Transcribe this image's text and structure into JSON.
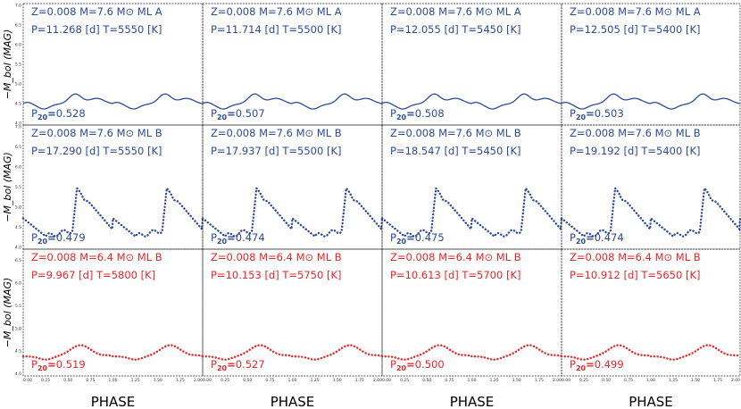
{
  "chart_data": {
    "type": "line",
    "rows": [
      {
        "label": "ML A",
        "color": "#2b4a9b",
        "style": "solid",
        "ylabel": "−M_bol (MAG)",
        "yticks": [
          4.0,
          4.5,
          5.0,
          5.5,
          6.0,
          6.5,
          7.0
        ],
        "ylim": [
          3.95,
          7.05
        ]
      },
      {
        "label": "ML B",
        "color": "#2b4a9b",
        "style": "dotted",
        "ylabel": "−M_bol (MAG)",
        "yticks": [
          4.0,
          4.5,
          5.0,
          5.5,
          6.0,
          6.5,
          7.0
        ],
        "ylim": [
          3.95,
          7.05
        ]
      },
      {
        "label": "ML B",
        "color": "#e8262a",
        "style": "dotted",
        "ylabel": "−M_bol (MAG)",
        "yticks": [
          4.0,
          4.5,
          5.0,
          5.5,
          6.0,
          6.5
        ],
        "ylim": [
          3.95,
          6.75
        ]
      }
    ],
    "xticks": [
      "0.00",
      "0.25",
      "0.50",
      "0.75",
      "1.00",
      "1.25",
      "1.50",
      "1.75",
      "2.00"
    ],
    "xlim": [
      0,
      2
    ],
    "xlabel": "PHASE",
    "panels": [
      {
        "row": 0,
        "col": 0,
        "line1": "Z=0.008 M=7.6 M⊙  ML A",
        "line2": "P=11.268 [d]  T=5550 [K]",
        "p20": "0.528"
      },
      {
        "row": 0,
        "col": 1,
        "line1": "Z=0.008 M=7.6 M⊙  ML A",
        "line2": "P=11.714 [d]  T=5500 [K]",
        "p20": "0.507"
      },
      {
        "row": 0,
        "col": 2,
        "line1": "Z=0.008 M=7.6 M⊙  ML A",
        "line2": "P=12.055 [d]  T=5450 [K]",
        "p20": "0.508"
      },
      {
        "row": 0,
        "col": 3,
        "line1": "Z=0.008 M=7.6 M⊙  ML A",
        "line2": "P=12.505 [d]  T=5400 [K]",
        "p20": "0.503"
      },
      {
        "row": 1,
        "col": 0,
        "line1": "Z=0.008 M=7.6 M⊙  ML B",
        "line2": "P=17.290 [d]  T=5550 [K]",
        "p20": "0.479"
      },
      {
        "row": 1,
        "col": 1,
        "line1": "Z=0.008 M=7.6 M⊙  ML B",
        "line2": "P=17.937 [d]  T=5500 [K]",
        "p20": "0.474"
      },
      {
        "row": 1,
        "col": 2,
        "line1": "Z=0.008 M=7.6 M⊙  ML B",
        "line2": "P=18.547 [d]  T=5450 [K]",
        "p20": "0.475"
      },
      {
        "row": 1,
        "col": 3,
        "line1": "Z=0.008 M=7.6 M⊙  ML B",
        "line2": "P=19.192 [d]  T=5400 [K]",
        "p20": "0.474"
      },
      {
        "row": 2,
        "col": 0,
        "line1": "Z=0.008 M=6.4 M⊙  ML B",
        "line2": "P=9.967 [d]  T=5800 [K]",
        "p20": "0.519"
      },
      {
        "row": 2,
        "col": 1,
        "line1": "Z=0.008 M=6.4 M⊙  ML B",
        "line2": "P=10.153 [d]  T=5750 [K]",
        "p20": "0.527"
      },
      {
        "row": 2,
        "col": 2,
        "line1": "Z=0.008 M=6.4 M⊙  ML B",
        "line2": "P=10.613 [d]  T=5700 [K]",
        "p20": "0.500"
      },
      {
        "row": 2,
        "col": 3,
        "line1": "Z=0.008 M=6.4 M⊙  ML B",
        "line2": "P=10.912 [d]  T=5650 [K]",
        "p20": "0.499"
      }
    ]
  }
}
